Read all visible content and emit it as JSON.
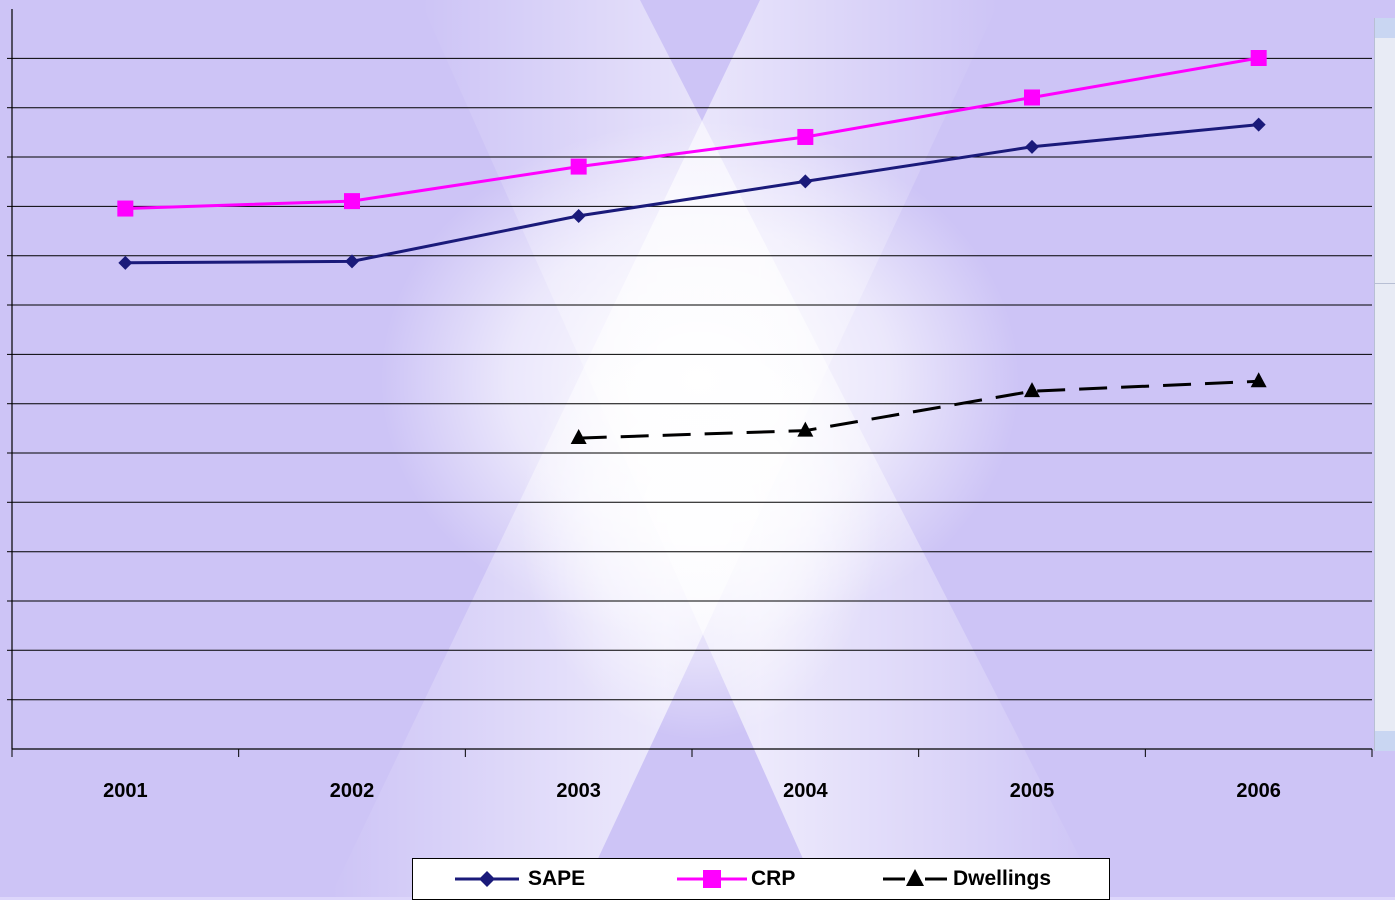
{
  "chart_data": {
    "type": "line",
    "title": "",
    "xlabel": "",
    "ylabel": "",
    "categories": [
      "2001",
      "2002",
      "2003",
      "2004",
      "2005",
      "2006"
    ],
    "ylim": [
      0,
      14
    ],
    "grid": true,
    "legend_position": "bottom",
    "series": [
      {
        "name": "SAPE",
        "values": [
          9.85,
          9.88,
          10.8,
          11.5,
          12.2,
          12.65
        ],
        "color": "#1a1a7a",
        "marker": "diamond",
        "dash": "solid"
      },
      {
        "name": "CRP",
        "values": [
          10.95,
          11.1,
          11.8,
          12.4,
          13.2,
          14.0
        ],
        "color": "#ff00ff",
        "marker": "square",
        "dash": "solid"
      },
      {
        "name": "Dwellings",
        "values": [
          null,
          null,
          6.3,
          6.45,
          7.25,
          7.45
        ],
        "color": "#000000",
        "marker": "triangle",
        "dash": "dashed"
      }
    ]
  },
  "colors": {
    "background": "#ddd6fb",
    "gridline": "#000000"
  }
}
